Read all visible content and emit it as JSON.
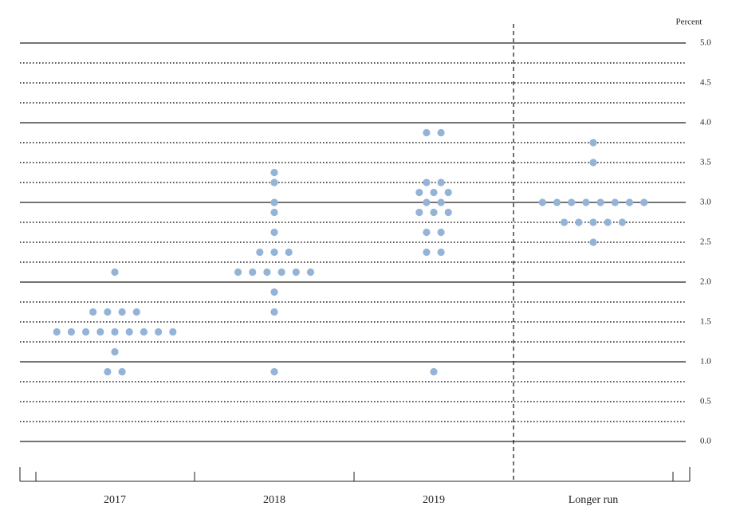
{
  "chart_data": {
    "type": "dot",
    "y_label": "Percent",
    "categories": [
      "2017",
      "2018",
      "2019",
      "Longer run"
    ],
    "values": [
      [
        2.125,
        1.625,
        1.625,
        1.625,
        1.625,
        1.375,
        1.375,
        1.375,
        1.375,
        1.375,
        1.375,
        1.375,
        1.375,
        1.375,
        1.125,
        0.875,
        0.875
      ],
      [
        3.375,
        3.25,
        3.0,
        2.875,
        2.625,
        2.375,
        2.375,
        2.375,
        2.125,
        2.125,
        2.125,
        2.125,
        2.125,
        2.125,
        1.875,
        1.625,
        0.875
      ],
      [
        3.875,
        3.875,
        3.25,
        3.25,
        3.125,
        3.125,
        3.125,
        3.0,
        3.0,
        2.875,
        2.875,
        2.875,
        2.625,
        2.625,
        2.375,
        2.375,
        0.875
      ],
      [
        3.75,
        3.5,
        3.0,
        3.0,
        3.0,
        3.0,
        3.0,
        3.0,
        3.0,
        3.0,
        2.75,
        2.75,
        2.75,
        2.75,
        2.75,
        2.5
      ]
    ],
    "color": "#93b3d7",
    "ylim": [
      0,
      5
    ],
    "yticks": [
      {
        "value": 0,
        "label": "0.0"
      },
      0.5,
      {
        "value": 1,
        "label": "1.0"
      },
      1.5,
      {
        "value": 2,
        "label": "2.0"
      },
      2.5,
      {
        "value": 3,
        "label": "3.0"
      },
      3.5,
      {
        "value": 4,
        "label": "4.0"
      },
      4.5,
      {
        "value": 5,
        "label": "5.0"
      }
    ],
    "minor_yticks": [
      0.25,
      0.75,
      1.25,
      1.75,
      2.25,
      2.75,
      3.25,
      3.75,
      4.25,
      4.75
    ],
    "grid": true
  }
}
